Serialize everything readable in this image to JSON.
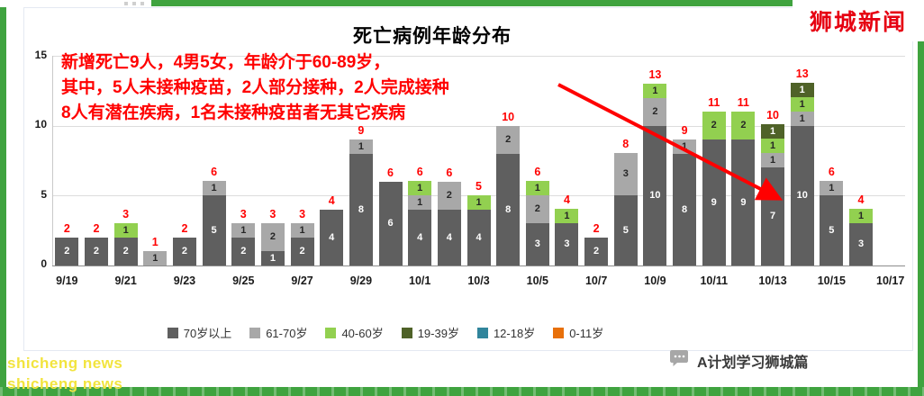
{
  "page": {
    "frame_color": "#3fa33f",
    "background": "#ffffff"
  },
  "logo": {
    "text": "狮城新闻",
    "color": "#e60012"
  },
  "chart": {
    "title": "死亡病例年龄分布",
    "annotation": {
      "color": "#ff0000",
      "lines": [
        "新增死亡9人，4男5女，年龄介于60-89岁，",
        "其中，5人未接种疫苗，2人部分接种，2人完成接种",
        "8人有潜在疾病，1名未接种疫苗者无其它疾病"
      ]
    }
  },
  "y_axis": {
    "ticks": [
      15,
      10,
      5,
      0
    ],
    "max": 15
  },
  "x_axis": {
    "labels": [
      "9/19",
      "9/21",
      "9/23",
      "9/25",
      "9/27",
      "9/29",
      "10/1",
      "10/3",
      "10/5",
      "10/7",
      "10/9",
      "10/11",
      "10/13",
      "10/15",
      "10/17"
    ]
  },
  "chart_data": {
    "type": "bar",
    "stacked": true,
    "title": "死亡病例年龄分布",
    "ylim": [
      0,
      15
    ],
    "grid": true,
    "legend_position": "bottom",
    "categories": [
      "9/19",
      "9/20",
      "9/21",
      "9/22",
      "9/23",
      "9/24",
      "9/25",
      "9/26",
      "9/27",
      "9/28",
      "9/29",
      "9/30",
      "10/1",
      "10/2",
      "10/3",
      "10/4",
      "10/5",
      "10/6",
      "10/7",
      "10/8",
      "10/9",
      "10/10",
      "10/11",
      "10/12",
      "10/13",
      "10/14",
      "10/15",
      "10/16",
      "10/17"
    ],
    "series": [
      {
        "name": "70岁以上",
        "color": "#5f5f5f",
        "label_color": "#ffffff",
        "values": [
          2,
          2,
          2,
          0,
          2,
          5,
          2,
          1,
          2,
          4,
          8,
          6,
          4,
          4,
          4,
          8,
          3,
          3,
          2,
          5,
          10,
          8,
          9,
          9,
          7,
          10,
          5,
          3,
          0
        ]
      },
      {
        "name": "61-70岁",
        "color": "#a8a8a8",
        "label_color": "#262626",
        "values": [
          0,
          0,
          0,
          1,
          0,
          1,
          1,
          2,
          1,
          0,
          1,
          0,
          1,
          2,
          0,
          2,
          2,
          0,
          0,
          3,
          2,
          1,
          0,
          0,
          1,
          1,
          1,
          0,
          0
        ]
      },
      {
        "name": "40-60岁",
        "color": "#92d050",
        "label_color": "#262626",
        "values": [
          0,
          0,
          1,
          0,
          0,
          0,
          0,
          0,
          0,
          0,
          0,
          0,
          1,
          0,
          1,
          0,
          1,
          1,
          0,
          0,
          1,
          0,
          2,
          2,
          1,
          1,
          0,
          1,
          0
        ]
      },
      {
        "name": "19-39岁",
        "color": "#4f6228",
        "label_color": "#ffffff",
        "values": [
          0,
          0,
          0,
          0,
          0,
          0,
          0,
          0,
          0,
          0,
          0,
          0,
          0,
          0,
          0,
          0,
          0,
          0,
          0,
          0,
          0,
          0,
          0,
          0,
          1,
          1,
          0,
          0,
          0
        ]
      },
      {
        "name": "12-18岁",
        "color": "#31859c",
        "label_color": "#ffffff",
        "values": [
          0,
          0,
          0,
          0,
          0,
          0,
          0,
          0,
          0,
          0,
          0,
          0,
          0,
          0,
          0,
          0,
          0,
          0,
          0,
          0,
          0,
          0,
          0,
          0,
          0,
          0,
          0,
          0,
          0
        ]
      },
      {
        "name": "0-11岁",
        "color": "#e8700a",
        "label_color": "#ffffff",
        "values": [
          0,
          0,
          0,
          0,
          0,
          0,
          0,
          0,
          0,
          0,
          0,
          0,
          0,
          0,
          0,
          0,
          0,
          0,
          0,
          0,
          0,
          0,
          0,
          0,
          0,
          0,
          0,
          0,
          0
        ]
      }
    ],
    "totals": [
      2,
      2,
      3,
      1,
      2,
      6,
      3,
      3,
      3,
      4,
      9,
      6,
      6,
      6,
      5,
      10,
      6,
      4,
      2,
      8,
      13,
      9,
      11,
      11,
      10,
      13,
      6,
      4,
      null
    ]
  },
  "footer": {
    "watermark_line1": "shicheng news",
    "watermark_line2": "shicheng news",
    "credit": "A计划学习狮城篇"
  }
}
